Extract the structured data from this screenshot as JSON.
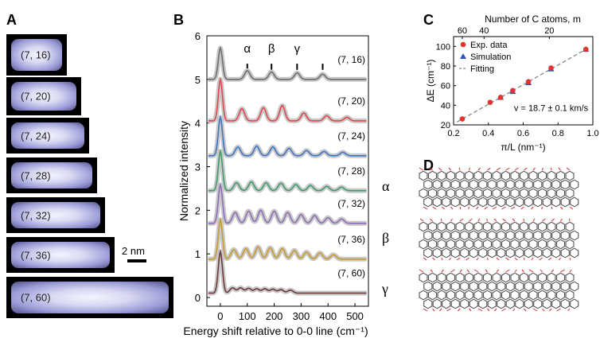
{
  "panels": {
    "A": "A",
    "B": "B",
    "C": "C",
    "D": "D"
  },
  "panel_a": {
    "images": [
      {
        "label": "(7, 16)",
        "rel_len": 16
      },
      {
        "label": "(7, 20)",
        "rel_len": 20
      },
      {
        "label": "(7, 24)",
        "rel_len": 24
      },
      {
        "label": "(7, 28)",
        "rel_len": 28
      },
      {
        "label": "(7, 32)",
        "rel_len": 32
      },
      {
        "label": "(7, 36)",
        "rel_len": 36
      },
      {
        "label": "(7, 60)",
        "rel_len": 60
      }
    ],
    "scale_bar": "2 nm"
  },
  "panel_d": {
    "modes": [
      "α",
      "β",
      "γ"
    ]
  },
  "chart_data": [
    {
      "type": "line",
      "panel": "B",
      "xlabel": "Energy shift relative to 0-0 line (cm⁻¹)",
      "ylabel": "Normalized intensity",
      "xlim": [
        -50,
        550
      ],
      "ylim": [
        -0.2,
        6.0
      ],
      "xticks": [
        0,
        100,
        200,
        300,
        400,
        500
      ],
      "yticks": [
        0,
        1,
        2,
        3,
        4,
        5,
        6
      ],
      "mode_labels": [
        {
          "text": "α",
          "x": 100
        },
        {
          "text": "β",
          "x": 190
        },
        {
          "text": "γ",
          "x": 285
        }
      ],
      "tick_marks_x": [
        100,
        190,
        285,
        380
      ],
      "series": [
        {
          "name": "(7, 16)",
          "offset": 5.0,
          "color": "#6e6e6e",
          "main": 0.72,
          "peaks": [
            [
              100,
              0.2
            ],
            [
              190,
              0.17
            ],
            [
              285,
              0.15
            ],
            [
              380,
              0.12
            ]
          ]
        },
        {
          "name": "(7, 20)",
          "offset": 4.05,
          "color": "#e2474f",
          "main": 0.95,
          "peaks": [
            [
              80,
              0.28
            ],
            [
              160,
              0.3
            ],
            [
              230,
              0.35
            ],
            [
              310,
              0.18
            ],
            [
              395,
              0.12
            ],
            [
              470,
              0.08
            ]
          ]
        },
        {
          "name": "(7, 24)",
          "offset": 3.25,
          "color": "#3d74c4",
          "main": 0.88,
          "peaks": [
            [
              65,
              0.2
            ],
            [
              135,
              0.22
            ],
            [
              195,
              0.2
            ],
            [
              255,
              0.17
            ],
            [
              320,
              0.12
            ],
            [
              385,
              0.1
            ],
            [
              455,
              0.08
            ]
          ]
        },
        {
          "name": "(7, 28)",
          "offset": 2.45,
          "color": "#3f9c6b",
          "main": 0.9,
          "peaks": [
            [
              60,
              0.18
            ],
            [
              115,
              0.2
            ],
            [
              170,
              0.18
            ],
            [
              225,
              0.17
            ],
            [
              280,
              0.14
            ],
            [
              335,
              0.12
            ],
            [
              395,
              0.1
            ],
            [
              450,
              0.08
            ]
          ]
        },
        {
          "name": "(7, 32)",
          "offset": 1.7,
          "color": "#8f6fb8",
          "main": 0.88,
          "peaks": [
            [
              55,
              0.25
            ],
            [
              105,
              0.28
            ],
            [
              150,
              0.3
            ],
            [
              200,
              0.28
            ],
            [
              250,
              0.25
            ],
            [
              300,
              0.2
            ],
            [
              350,
              0.18
            ],
            [
              400,
              0.13
            ],
            [
              450,
              0.1
            ]
          ]
        },
        {
          "name": "(7, 36)",
          "offset": 0.88,
          "color": "#c99a2c",
          "main": 0.9,
          "peaks": [
            [
              50,
              0.22
            ],
            [
              95,
              0.24
            ],
            [
              140,
              0.28
            ],
            [
              185,
              0.26
            ],
            [
              230,
              0.24
            ],
            [
              275,
              0.2
            ],
            [
              320,
              0.16
            ],
            [
              370,
              0.14
            ],
            [
              420,
              0.1
            ]
          ]
        },
        {
          "name": "(7, 60)",
          "offset": 0.1,
          "color": "#6b3a3a",
          "main": 0.95,
          "peaks": [
            [
              45,
              0.12
            ],
            [
              75,
              0.12
            ],
            [
              105,
              0.11
            ],
            [
              135,
              0.1
            ],
            [
              165,
              0.1
            ],
            [
              195,
              0.09
            ],
            [
              225,
              0.08
            ],
            [
              260,
              0.07
            ]
          ]
        }
      ]
    },
    {
      "type": "scatter",
      "panel": "C",
      "xlabel": "π/L (nm⁻¹)",
      "ylabel": "ΔE (cm⁻¹)",
      "top_axis_label": "Number of C atoms, m",
      "top_ticks": [
        60,
        40,
        20
      ],
      "xlim": [
        0.2,
        1.0
      ],
      "ylim": [
        20,
        110
      ],
      "xticks": [
        0.2,
        0.4,
        0.6,
        0.8,
        1.0
      ],
      "yticks": [
        20,
        40,
        60,
        80,
        100
      ],
      "annotation": "v = 18.7 ± 0.1 km/s",
      "series": [
        {
          "name": "Exp. data",
          "color": "#e2332f",
          "marker": "circle",
          "x": [
            0.25,
            0.41,
            0.47,
            0.54,
            0.63,
            0.76,
            0.96
          ],
          "y": [
            26,
            43,
            48,
            55,
            64,
            78,
            97
          ]
        },
        {
          "name": "Simulation",
          "color": "#2f56b7",
          "marker": "triangle",
          "x": [
            0.47,
            0.54,
            0.63,
            0.76,
            0.96
          ],
          "y": [
            48,
            54,
            63,
            77,
            97
          ]
        },
        {
          "name": "Fitting",
          "color": "#888888",
          "marker": "dash-line",
          "x": [
            0.22,
            0.98
          ],
          "y": [
            23,
            99
          ]
        }
      ]
    }
  ]
}
